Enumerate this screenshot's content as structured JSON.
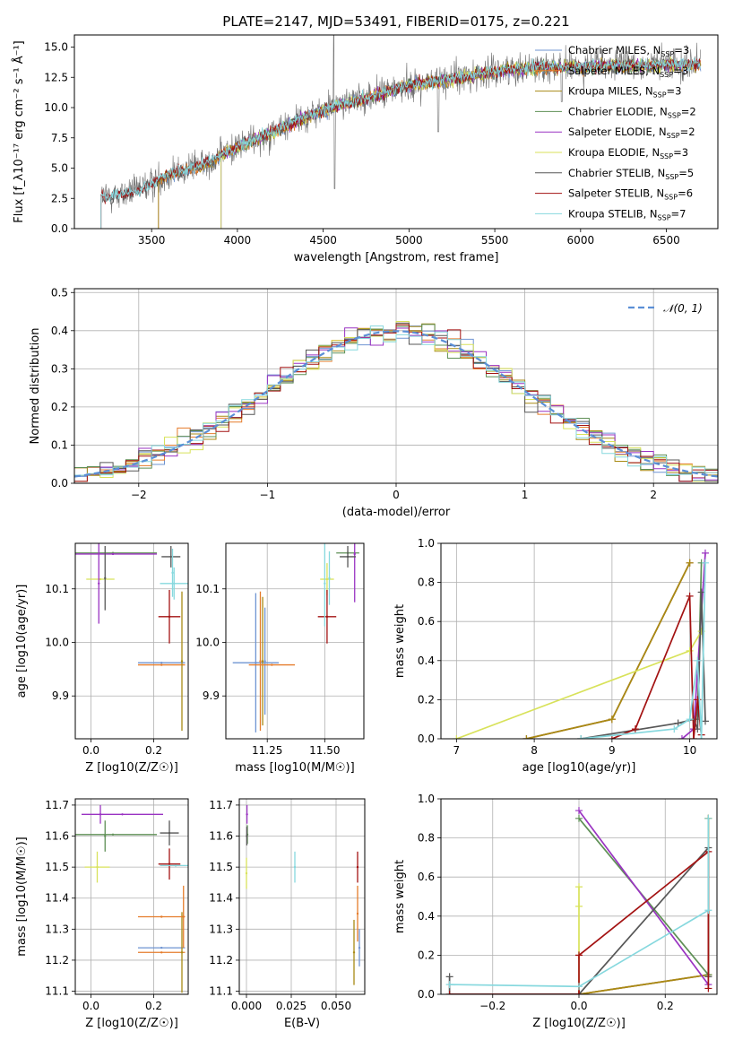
{
  "colors": {
    "Chabrier MILES": "#6f94d2",
    "Salpeter MILES": "#e57c2b",
    "Kroupa MILES": "#a88a14",
    "Chabrier ELODIE": "#5e8f55",
    "Salpeter ELODIE": "#9a33c2",
    "Kroupa ELODIE": "#d8e25a",
    "Chabrier STELIB": "#575757",
    "Salpeter STELIB": "#a31212",
    "Kroupa STELIB": "#86d8de"
  },
  "chart_data": [
    {
      "id": "spectrum",
      "type": "line",
      "title": "PLATE=2147, MJD=53491, FIBERID=0175, z=0.221",
      "xlabel": "wavelength [Angstrom, rest frame]",
      "ylabel": "Flux [f_λ10⁻¹⁷ erg cm⁻² s⁻¹ Å⁻¹]",
      "xlim": [
        3050,
        6800
      ],
      "ylim": [
        0,
        16
      ],
      "xticks": [
        3500,
        4000,
        4500,
        5000,
        5500,
        6000,
        6500
      ],
      "yticks": [
        0.0,
        2.5,
        5.0,
        7.5,
        10.0,
        12.5,
        15.0
      ],
      "grid": false,
      "legend_position": "top-right",
      "legend": [
        {
          "model": "Chabrier MILES",
          "nssp": 3,
          "label": "Chabrier MILES, N"
        },
        {
          "model": "Salpeter MILES",
          "nssp": 3,
          "label": "Salpeter MILES, N"
        },
        {
          "model": "Kroupa MILES",
          "nssp": 3,
          "label": "Kroupa MILES, N"
        },
        {
          "model": "Chabrier ELODIE",
          "nssp": 2,
          "label": "Chabrier ELODIE, N"
        },
        {
          "model": "Salpeter ELODIE",
          "nssp": 2,
          "label": "Salpeter ELODIE, N"
        },
        {
          "model": "Kroupa ELODIE",
          "nssp": 3,
          "label": "Kroupa ELODIE, N"
        },
        {
          "model": "Chabrier STELIB",
          "nssp": 5,
          "label": "Chabrier STELIB, N"
        },
        {
          "model": "Salpeter STELIB",
          "nssp": 6,
          "label": "Salpeter STELIB, N"
        },
        {
          "model": "Kroupa STELIB",
          "nssp": 7,
          "label": "Kroupa STELIB, N"
        }
      ],
      "continuum_anchors": [
        [
          3200,
          2.6
        ],
        [
          3400,
          3.0
        ],
        [
          3600,
          4.5
        ],
        [
          3800,
          5.3
        ],
        [
          4000,
          6.8
        ],
        [
          4200,
          8.0
        ],
        [
          4400,
          9.3
        ],
        [
          4600,
          10.3
        ],
        [
          4800,
          11.0
        ],
        [
          5000,
          11.9
        ],
        [
          5200,
          12.3
        ],
        [
          5400,
          12.8
        ],
        [
          5600,
          13.2
        ],
        [
          5800,
          13.4
        ],
        [
          6000,
          13.4
        ],
        [
          6200,
          13.5
        ],
        [
          6400,
          13.5
        ],
        [
          6600,
          13.6
        ]
      ],
      "model_start": {
        "MILES": 3540,
        "ELODIE": 3905,
        "STELIB": 3205
      }
    },
    {
      "id": "residuals",
      "type": "line",
      "xlabel": "(data-model)/error",
      "ylabel": "Normed distribution",
      "xlim": [
        -2.5,
        2.5
      ],
      "ylim": [
        0,
        0.51
      ],
      "xticks": [
        -2,
        -1,
        0,
        1,
        2
      ],
      "yticks": [
        0.0,
        0.1,
        0.2,
        0.3,
        0.4,
        0.5
      ],
      "grid": true,
      "legend_position": "top-right",
      "reference": {
        "label": "𝒩(0, 1)",
        "color": "#5b8fd6",
        "mean": 0,
        "sigma": 1
      }
    },
    {
      "id": "age-vs-z",
      "type": "scatter",
      "xlabel": "Z [log10(Z/Z☉)]",
      "ylabel": "age  [log10(age/yr)]",
      "xlim": [
        -0.05,
        0.31
      ],
      "ylim": [
        9.82,
        10.185
      ],
      "xticks": [
        0.0,
        0.2
      ],
      "yticks": [
        9.9,
        10.0,
        10.1
      ],
      "grid": true,
      "points": [
        {
          "model": "Chabrier MILES",
          "x": 0.225,
          "xerr": 0.075,
          "y": 9.962,
          "yerr": 0.0
        },
        {
          "model": "Salpeter MILES",
          "x": 0.225,
          "xerr": 0.075,
          "y": 9.958,
          "yerr": 0.0
        },
        {
          "model": "Kroupa MILES",
          "x": 0.29,
          "xerr": 0.0,
          "y": 9.965,
          "yerr": 0.13
        },
        {
          "model": "Chabrier ELODIE",
          "x": 0.07,
          "xerr": 0.14,
          "y": 10.167,
          "yerr": 0.0
        },
        {
          "model": "Salpeter ELODIE",
          "x": 0.07,
          "xerr": 0.14,
          "y": 10.165,
          "yerr": 0.0
        },
        {
          "model": "Kroupa ELODIE",
          "x": 0.03,
          "xerr": 0.045,
          "y": 10.118,
          "yerr": 0.0
        },
        {
          "model": "Chabrier STELIB",
          "x": 0.045,
          "xerr": 0.0,
          "y": 10.12,
          "yerr": 0.06
        },
        {
          "model": "Salpeter STELIB",
          "x": 0.25,
          "xerr": 0.035,
          "y": 10.048,
          "yerr": 0.05
        },
        {
          "model": "Kroupa STELIB",
          "x": 0.265,
          "xerr": 0.045,
          "y": 10.11,
          "yerr": 0.03
        },
        {
          "model": "Chabrier STELIB",
          "x": 0.255,
          "xerr": 0.03,
          "y": 10.16,
          "yerr": 0.02
        },
        {
          "model": "Salpeter ELODIE",
          "x": 0.025,
          "xerr": 0.0,
          "y": 10.11,
          "yerr": 0.075
        },
        {
          "model": "Kroupa STELIB",
          "x": 0.26,
          "xerr": 0.0,
          "y": 10.13,
          "yerr": 0.045
        }
      ]
    },
    {
      "id": "age-vs-mass",
      "type": "scatter",
      "xlabel": "mass [log10(M/M☉)]",
      "ylabel": "",
      "xlim": [
        11.07,
        11.67
      ],
      "ylim": [
        9.82,
        10.185
      ],
      "xticks": [
        11.25,
        11.5
      ],
      "yticks": [
        9.9,
        10.0,
        10.1
      ],
      "grid": true,
      "points": [
        {
          "model": "Chabrier MILES",
          "x": 11.2,
          "xerr": 0.1,
          "y": 9.962,
          "yerr": 0.13
        },
        {
          "model": "Salpeter MILES",
          "x": 11.22,
          "xerr": 0.0,
          "y": 9.965,
          "yerr": 0.13
        },
        {
          "model": "Kroupa MILES",
          "x": 11.23,
          "xerr": 0.0,
          "y": 9.965,
          "yerr": 0.12
        },
        {
          "model": "Chabrier ELODIE",
          "x": 11.6,
          "xerr": 0.05,
          "y": 10.167,
          "yerr": 0.0
        },
        {
          "model": "Salpeter ELODIE",
          "x": 11.63,
          "xerr": 0.0,
          "y": 10.165,
          "yerr": 0.09
        },
        {
          "model": "Kroupa ELODIE",
          "x": 11.51,
          "xerr": 0.03,
          "y": 10.118,
          "yerr": 0.03
        },
        {
          "model": "Chabrier STELIB",
          "x": 11.6,
          "xerr": 0.035,
          "y": 10.16,
          "yerr": 0.02
        },
        {
          "model": "Salpeter STELIB",
          "x": 11.51,
          "xerr": 0.04,
          "y": 10.048,
          "yerr": 0.05
        },
        {
          "model": "Kroupa STELIB",
          "x": 11.5,
          "xerr": 0.0,
          "y": 10.11,
          "yerr": 0.08
        },
        {
          "model": "Chabrier MILES",
          "x": 11.24,
          "xerr": 0.0,
          "y": 9.965,
          "yerr": 0.1
        },
        {
          "model": "Salpeter MILES",
          "x": 11.27,
          "xerr": 0.1,
          "y": 9.958,
          "yerr": 0.0
        },
        {
          "model": "Kroupa STELIB",
          "x": 11.52,
          "xerr": 0.0,
          "y": 10.12,
          "yerr": 0.05
        }
      ]
    },
    {
      "id": "massweight-vs-age",
      "type": "line",
      "xlabel": "age  [log10(age/yr)]",
      "ylabel": "mass weight",
      "xlim": [
        6.8,
        10.35
      ],
      "ylim": [
        0,
        1.0
      ],
      "xticks": [
        7,
        8,
        9,
        10
      ],
      "yticks": [
        0.0,
        0.2,
        0.4,
        0.6,
        0.8,
        1.0
      ],
      "grid": true,
      "series": [
        {
          "model": "Chabrier MILES",
          "x": [
            7.9,
            9.0,
            10.0
          ],
          "y": [
            0.0,
            0.1,
            0.9
          ]
        },
        {
          "model": "Salpeter MILES",
          "x": [
            7.9,
            9.0,
            10.0
          ],
          "y": [
            0.0,
            0.1,
            0.9
          ]
        },
        {
          "model": "Kroupa MILES",
          "x": [
            7.9,
            9.0,
            10.0
          ],
          "y": [
            0.0,
            0.1,
            0.9
          ]
        },
        {
          "model": "Chabrier ELODIE",
          "x": [
            10.1,
            10.15
          ],
          "y": [
            0.1,
            0.9
          ]
        },
        {
          "model": "Salpeter ELODIE",
          "x": [
            9.9,
            10.05,
            10.2
          ],
          "y": [
            0.0,
            0.05,
            0.95
          ]
        },
        {
          "model": "Kroupa ELODIE",
          "x": [
            7.0,
            10.0,
            10.15
          ],
          "y": [
            0.0,
            0.45,
            0.55
          ]
        },
        {
          "model": "Chabrier STELIB",
          "x": [
            8.6,
            9.85,
            10.05,
            10.1,
            10.15,
            10.2
          ],
          "y": [
            0.0,
            0.08,
            0.1,
            0.05,
            0.75,
            0.09
          ]
        },
        {
          "model": "Salpeter STELIB",
          "x": [
            9.0,
            9.3,
            10.0,
            10.05,
            10.1,
            10.15
          ],
          "y": [
            0.0,
            0.05,
            0.73,
            0.0,
            0.2,
            0.02
          ]
        },
        {
          "model": "Kroupa STELIB",
          "x": [
            8.6,
            9.8,
            10.0,
            10.1,
            10.15,
            10.2
          ],
          "y": [
            0.0,
            0.05,
            0.1,
            0.4,
            0.0,
            0.9
          ]
        }
      ]
    },
    {
      "id": "mass-vs-z",
      "type": "scatter",
      "xlabel": "Z [log10(Z/Z☉)]",
      "ylabel": "mass [log10(M/M☉)]",
      "xlim": [
        -0.05,
        0.31
      ],
      "ylim": [
        11.09,
        11.72
      ],
      "xticks": [
        0.0,
        0.2
      ],
      "yticks": [
        11.1,
        11.2,
        11.3,
        11.4,
        11.5,
        11.6,
        11.7
      ],
      "grid": true,
      "points": [
        {
          "model": "Chabrier MILES",
          "x": 0.225,
          "xerr": 0.075,
          "y": 11.24,
          "yerr": 0.0
        },
        {
          "model": "Salpeter MILES",
          "x": 0.225,
          "xerr": 0.075,
          "y": 11.225,
          "yerr": 0.0
        },
        {
          "model": "Kroupa MILES",
          "x": 0.29,
          "xerr": 0.0,
          "y": 11.225,
          "yerr": 0.13
        },
        {
          "model": "Chabrier ELODIE",
          "x": 0.07,
          "xerr": 0.14,
          "y": 11.605,
          "yerr": 0.0
        },
        {
          "model": "Salpeter ELODIE",
          "x": 0.1,
          "xerr": 0.13,
          "y": 11.67,
          "yerr": 0.0
        },
        {
          "model": "Kroupa ELODIE",
          "x": 0.02,
          "xerr": 0.04,
          "y": 11.5,
          "yerr": 0.05
        },
        {
          "model": "Chabrier STELIB",
          "x": 0.25,
          "xerr": 0.03,
          "y": 11.61,
          "yerr": 0.04
        },
        {
          "model": "Salpeter STELIB",
          "x": 0.25,
          "xerr": 0.035,
          "y": 11.51,
          "yerr": 0.05
        },
        {
          "model": "Kroupa STELIB",
          "x": 0.27,
          "xerr": 0.05,
          "y": 11.505,
          "yerr": 0.0
        },
        {
          "model": "Salpeter ELODIE",
          "x": 0.03,
          "xerr": 0.0,
          "y": 11.67,
          "yerr": 0.03
        },
        {
          "model": "Chabrier ELODIE",
          "x": 0.045,
          "xerr": 0.0,
          "y": 11.6,
          "yerr": 0.05
        },
        {
          "model": "Salpeter MILES",
          "x": 0.225,
          "xerr": 0.075,
          "y": 11.34,
          "yerr": 0.0
        },
        {
          "model": "Salpeter MILES",
          "x": 0.295,
          "xerr": 0.0,
          "y": 11.34,
          "yerr": 0.1
        }
      ]
    },
    {
      "id": "mass-vs-ebv",
      "type": "scatter",
      "xlabel": "E(B-V)",
      "ylabel": "",
      "xlim": [
        -0.004,
        0.066
      ],
      "ylim": [
        11.09,
        11.72
      ],
      "xticks": [
        0.0,
        0.025,
        0.05
      ],
      "yticks": [
        11.1,
        11.2,
        11.3,
        11.4,
        11.5,
        11.6,
        11.7
      ],
      "grid": true,
      "points": [
        {
          "model": "Chabrier MILES",
          "x": 0.063,
          "xerr": 0.0,
          "y": 11.24,
          "yerr": 0.06
        },
        {
          "model": "Salpeter MILES",
          "x": 0.062,
          "xerr": 0.0,
          "y": 11.35,
          "yerr": 0.09
        },
        {
          "model": "Kroupa MILES",
          "x": 0.06,
          "xerr": 0.0,
          "y": 11.225,
          "yerr": 0.105
        },
        {
          "model": "Chabrier ELODIE",
          "x": 0.0005,
          "xerr": 0.0,
          "y": 11.605,
          "yerr": 0.03
        },
        {
          "model": "Salpeter ELODIE",
          "x": 0.0003,
          "xerr": 0.0,
          "y": 11.67,
          "yerr": 0.03
        },
        {
          "model": "Kroupa ELODIE",
          "x": 0.0,
          "xerr": 0.0,
          "y": 11.48,
          "yerr": 0.05
        },
        {
          "model": "Chabrier STELIB",
          "x": 0.0002,
          "xerr": 0.0,
          "y": 11.6,
          "yerr": 0.03
        },
        {
          "model": "Salpeter STELIB",
          "x": 0.062,
          "xerr": 0.0,
          "y": 11.5,
          "yerr": 0.05
        },
        {
          "model": "Kroupa STELIB",
          "x": 0.027,
          "xerr": 0.0,
          "y": 11.5,
          "yerr": 0.05
        }
      ]
    },
    {
      "id": "massweight-vs-z",
      "type": "line",
      "xlabel": "Z [log10(Z/Z☉)]",
      "ylabel": "mass weight",
      "xlim": [
        -0.32,
        0.32
      ],
      "ylim": [
        0,
        1.0
      ],
      "xticks": [
        -0.2,
        0.0,
        0.2
      ],
      "yticks": [
        0.0,
        0.2,
        0.4,
        0.6,
        0.8,
        1.0
      ],
      "grid": true,
      "series": [
        {
          "model": "Chabrier MILES",
          "x": [
            0.0,
            0.3,
            0.3
          ],
          "y": [
            0.0,
            0.1,
            0.9
          ]
        },
        {
          "model": "Salpeter MILES",
          "x": [
            0.0,
            0.3,
            0.3
          ],
          "y": [
            0.0,
            0.1,
            0.9
          ]
        },
        {
          "model": "Kroupa MILES",
          "x": [
            0.0,
            0.3,
            0.3
          ],
          "y": [
            0.0,
            0.1,
            0.9
          ]
        },
        {
          "model": "Chabrier ELODIE",
          "x": [
            0.0,
            0.3
          ],
          "y": [
            0.9,
            0.1
          ]
        },
        {
          "model": "Salpeter ELODIE",
          "x": [
            0.0,
            0.3
          ],
          "y": [
            0.94,
            0.05
          ]
        },
        {
          "model": "Kroupa ELODIE",
          "x": [
            0.0,
            0.0,
            0.0
          ],
          "y": [
            0.0,
            0.45,
            0.55
          ]
        },
        {
          "model": "Chabrier STELIB",
          "x": [
            -0.3,
            -0.3,
            0.0,
            0.3,
            0.3
          ],
          "y": [
            0.09,
            0.0,
            0.0,
            0.75,
            0.09
          ]
        },
        {
          "model": "Salpeter STELIB",
          "x": [
            -0.3,
            0.0,
            0.0,
            0.3,
            0.3
          ],
          "y": [
            0.0,
            0.0,
            0.2,
            0.73,
            0.03
          ]
        },
        {
          "model": "Kroupa STELIB",
          "x": [
            -0.3,
            0.0,
            0.3,
            0.3
          ],
          "y": [
            0.05,
            0.04,
            0.43,
            0.9
          ]
        }
      ]
    }
  ]
}
